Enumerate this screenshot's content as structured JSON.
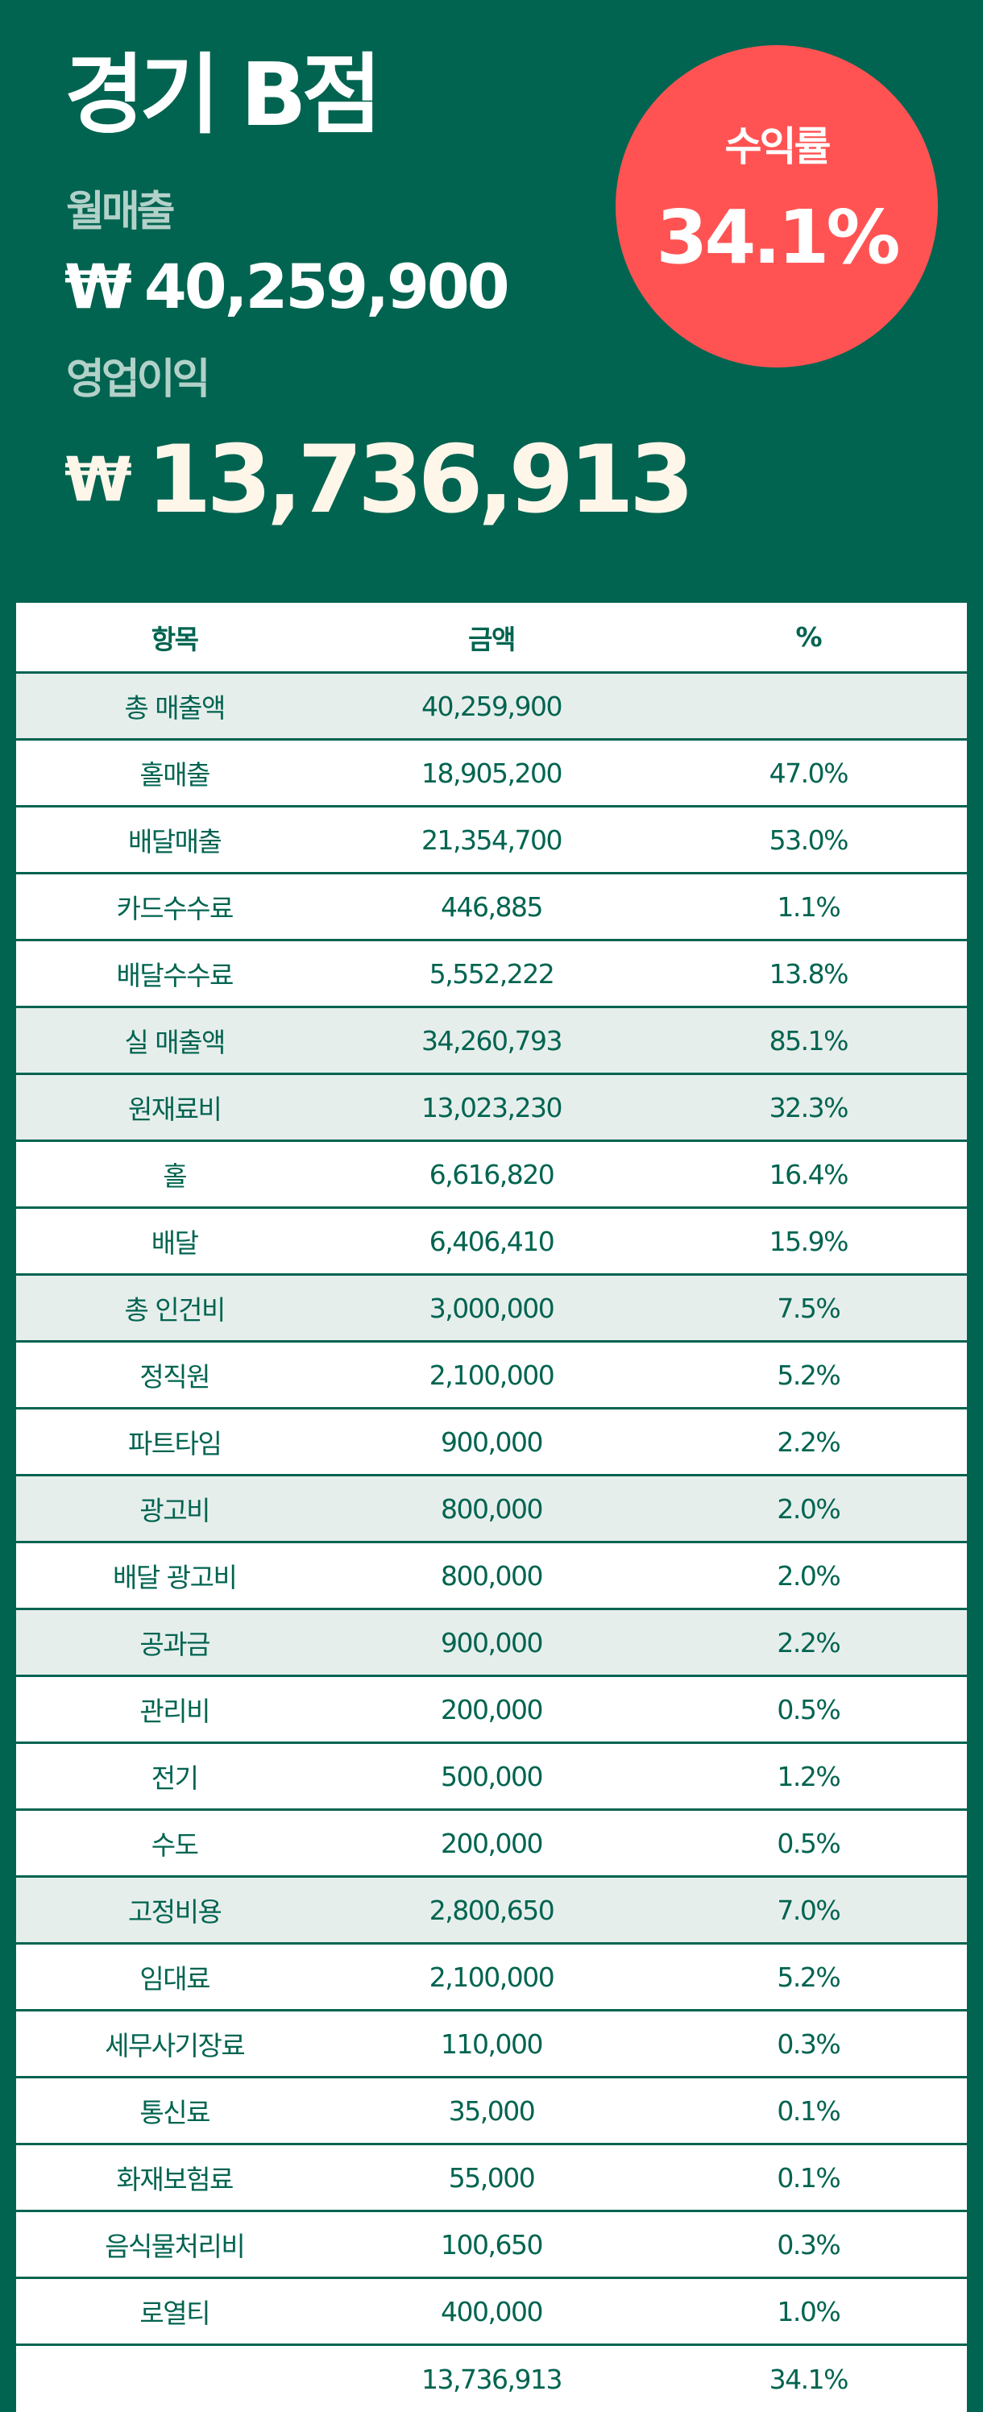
{
  "header": {
    "store_name": "경기 B점",
    "monthly_sales_label": "월매출",
    "monthly_sales_currency": "₩",
    "monthly_sales_value": "40,259,900",
    "operating_profit_label": "영업이익",
    "operating_profit_currency": "₩",
    "operating_profit_value": "13,736,913"
  },
  "profit_rate": {
    "label": "수익률",
    "value": "34.1%"
  },
  "colors": {
    "background": "#016450",
    "accent_circle": "#FF5353",
    "label_text": "#B2D1C9",
    "profit_text": "#FFF6EA",
    "table_text": "#016450",
    "highlight_row": "#E6EEEC"
  },
  "table": {
    "columns": [
      "항목",
      "금액",
      "%"
    ],
    "rows": [
      {
        "item": "총 매출액",
        "amount": "40,259,900",
        "percent": "",
        "highlight": true
      },
      {
        "item": "홀매출",
        "amount": "18,905,200",
        "percent": "47.0%",
        "highlight": false
      },
      {
        "item": "배달매출",
        "amount": "21,354,700",
        "percent": "53.0%",
        "highlight": false
      },
      {
        "item": "카드수수료",
        "amount": "446,885",
        "percent": "1.1%",
        "highlight": false
      },
      {
        "item": "배달수수료",
        "amount": "5,552,222",
        "percent": "13.8%",
        "highlight": false
      },
      {
        "item": "실 매출액",
        "amount": "34,260,793",
        "percent": "85.1%",
        "highlight": true
      },
      {
        "item": "원재료비",
        "amount": "13,023,230",
        "percent": "32.3%",
        "highlight": true
      },
      {
        "item": "홀",
        "amount": "6,616,820",
        "percent": "16.4%",
        "highlight": false
      },
      {
        "item": "배달",
        "amount": "6,406,410",
        "percent": "15.9%",
        "highlight": false
      },
      {
        "item": "총 인건비",
        "amount": "3,000,000",
        "percent": "7.5%",
        "highlight": true
      },
      {
        "item": "정직원",
        "amount": "2,100,000",
        "percent": "5.2%",
        "highlight": false
      },
      {
        "item": "파트타임",
        "amount": "900,000",
        "percent": "2.2%",
        "highlight": false
      },
      {
        "item": "광고비",
        "amount": "800,000",
        "percent": "2.0%",
        "highlight": true
      },
      {
        "item": "배달 광고비",
        "amount": "800,000",
        "percent": "2.0%",
        "highlight": false
      },
      {
        "item": "공과금",
        "amount": "900,000",
        "percent": "2.2%",
        "highlight": true
      },
      {
        "item": "관리비",
        "amount": "200,000",
        "percent": "0.5%",
        "highlight": false
      },
      {
        "item": "전기",
        "amount": "500,000",
        "percent": "1.2%",
        "highlight": false
      },
      {
        "item": "수도",
        "amount": "200,000",
        "percent": "0.5%",
        "highlight": false
      },
      {
        "item": "고정비용",
        "amount": "2,800,650",
        "percent": "7.0%",
        "highlight": true
      },
      {
        "item": "임대료",
        "amount": "2,100,000",
        "percent": "5.2%",
        "highlight": false
      },
      {
        "item": "세무사기장료",
        "amount": "110,000",
        "percent": "0.3%",
        "highlight": false
      },
      {
        "item": "통신료",
        "amount": "35,000",
        "percent": "0.1%",
        "highlight": false
      },
      {
        "item": "화재보험료",
        "amount": "55,000",
        "percent": "0.1%",
        "highlight": false
      },
      {
        "item": "음식물처리비",
        "amount": "100,650",
        "percent": "0.3%",
        "highlight": false
      },
      {
        "item": "로열티",
        "amount": "400,000",
        "percent": "1.0%",
        "highlight": false
      },
      {
        "item": "",
        "amount": "13,736,913",
        "percent": "34.1%",
        "highlight": false
      }
    ]
  }
}
